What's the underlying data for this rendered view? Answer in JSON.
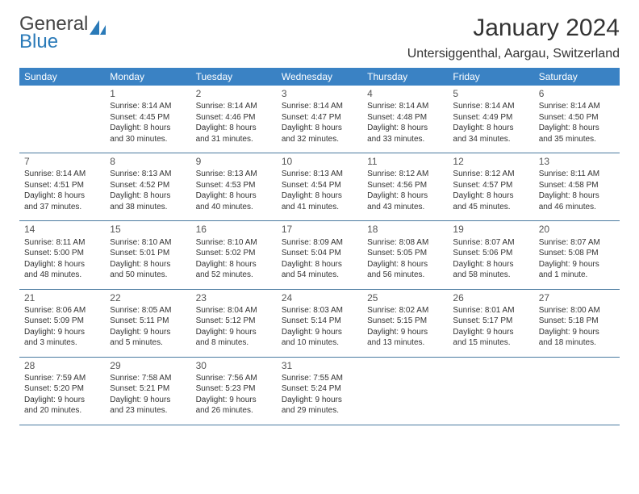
{
  "logo": {
    "top": "General",
    "bottom": "Blue",
    "sail_color": "#2a7ab8"
  },
  "title": "January 2024",
  "location": "Untersiggenthal, Aargau, Switzerland",
  "colors": {
    "header_bg": "#3a82c4",
    "header_text": "#ffffff",
    "row_border": "#4a7aa0",
    "body_text": "#333333",
    "daynum_text": "#555555",
    "logo_blue": "#2a7ab8",
    "page_bg": "#ffffff"
  },
  "day_headers": [
    "Sunday",
    "Monday",
    "Tuesday",
    "Wednesday",
    "Thursday",
    "Friday",
    "Saturday"
  ],
  "weeks": [
    [
      null,
      {
        "n": "1",
        "sunrise": "8:14 AM",
        "sunset": "4:45 PM",
        "daylight": "8 hours and 30 minutes."
      },
      {
        "n": "2",
        "sunrise": "8:14 AM",
        "sunset": "4:46 PM",
        "daylight": "8 hours and 31 minutes."
      },
      {
        "n": "3",
        "sunrise": "8:14 AM",
        "sunset": "4:47 PM",
        "daylight": "8 hours and 32 minutes."
      },
      {
        "n": "4",
        "sunrise": "8:14 AM",
        "sunset": "4:48 PM",
        "daylight": "8 hours and 33 minutes."
      },
      {
        "n": "5",
        "sunrise": "8:14 AM",
        "sunset": "4:49 PM",
        "daylight": "8 hours and 34 minutes."
      },
      {
        "n": "6",
        "sunrise": "8:14 AM",
        "sunset": "4:50 PM",
        "daylight": "8 hours and 35 minutes."
      }
    ],
    [
      {
        "n": "7",
        "sunrise": "8:14 AM",
        "sunset": "4:51 PM",
        "daylight": "8 hours and 37 minutes."
      },
      {
        "n": "8",
        "sunrise": "8:13 AM",
        "sunset": "4:52 PM",
        "daylight": "8 hours and 38 minutes."
      },
      {
        "n": "9",
        "sunrise": "8:13 AM",
        "sunset": "4:53 PM",
        "daylight": "8 hours and 40 minutes."
      },
      {
        "n": "10",
        "sunrise": "8:13 AM",
        "sunset": "4:54 PM",
        "daylight": "8 hours and 41 minutes."
      },
      {
        "n": "11",
        "sunrise": "8:12 AM",
        "sunset": "4:56 PM",
        "daylight": "8 hours and 43 minutes."
      },
      {
        "n": "12",
        "sunrise": "8:12 AM",
        "sunset": "4:57 PM",
        "daylight": "8 hours and 45 minutes."
      },
      {
        "n": "13",
        "sunrise": "8:11 AM",
        "sunset": "4:58 PM",
        "daylight": "8 hours and 46 minutes."
      }
    ],
    [
      {
        "n": "14",
        "sunrise": "8:11 AM",
        "sunset": "5:00 PM",
        "daylight": "8 hours and 48 minutes."
      },
      {
        "n": "15",
        "sunrise": "8:10 AM",
        "sunset": "5:01 PM",
        "daylight": "8 hours and 50 minutes."
      },
      {
        "n": "16",
        "sunrise": "8:10 AM",
        "sunset": "5:02 PM",
        "daylight": "8 hours and 52 minutes."
      },
      {
        "n": "17",
        "sunrise": "8:09 AM",
        "sunset": "5:04 PM",
        "daylight": "8 hours and 54 minutes."
      },
      {
        "n": "18",
        "sunrise": "8:08 AM",
        "sunset": "5:05 PM",
        "daylight": "8 hours and 56 minutes."
      },
      {
        "n": "19",
        "sunrise": "8:07 AM",
        "sunset": "5:06 PM",
        "daylight": "8 hours and 58 minutes."
      },
      {
        "n": "20",
        "sunrise": "8:07 AM",
        "sunset": "5:08 PM",
        "daylight": "9 hours and 1 minute."
      }
    ],
    [
      {
        "n": "21",
        "sunrise": "8:06 AM",
        "sunset": "5:09 PM",
        "daylight": "9 hours and 3 minutes."
      },
      {
        "n": "22",
        "sunrise": "8:05 AM",
        "sunset": "5:11 PM",
        "daylight": "9 hours and 5 minutes."
      },
      {
        "n": "23",
        "sunrise": "8:04 AM",
        "sunset": "5:12 PM",
        "daylight": "9 hours and 8 minutes."
      },
      {
        "n": "24",
        "sunrise": "8:03 AM",
        "sunset": "5:14 PM",
        "daylight": "9 hours and 10 minutes."
      },
      {
        "n": "25",
        "sunrise": "8:02 AM",
        "sunset": "5:15 PM",
        "daylight": "9 hours and 13 minutes."
      },
      {
        "n": "26",
        "sunrise": "8:01 AM",
        "sunset": "5:17 PM",
        "daylight": "9 hours and 15 minutes."
      },
      {
        "n": "27",
        "sunrise": "8:00 AM",
        "sunset": "5:18 PM",
        "daylight": "9 hours and 18 minutes."
      }
    ],
    [
      {
        "n": "28",
        "sunrise": "7:59 AM",
        "sunset": "5:20 PM",
        "daylight": "9 hours and 20 minutes."
      },
      {
        "n": "29",
        "sunrise": "7:58 AM",
        "sunset": "5:21 PM",
        "daylight": "9 hours and 23 minutes."
      },
      {
        "n": "30",
        "sunrise": "7:56 AM",
        "sunset": "5:23 PM",
        "daylight": "9 hours and 26 minutes."
      },
      {
        "n": "31",
        "sunrise": "7:55 AM",
        "sunset": "5:24 PM",
        "daylight": "9 hours and 29 minutes."
      },
      null,
      null,
      null
    ]
  ],
  "labels": {
    "sunrise": "Sunrise:",
    "sunset": "Sunset:",
    "daylight": "Daylight:"
  }
}
